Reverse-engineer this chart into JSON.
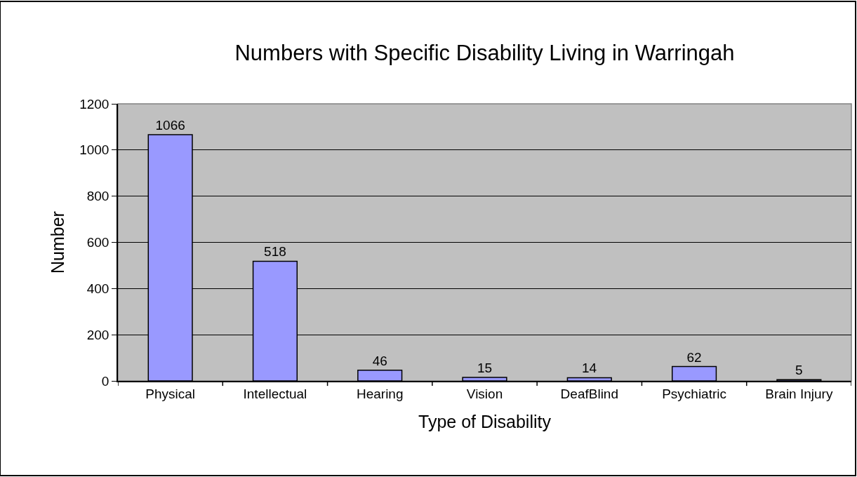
{
  "chart_data": {
    "type": "bar",
    "title": "Numbers with Specific Disability Living in Warringah",
    "xlabel": "Type of Disability",
    "ylabel": "Number",
    "categories": [
      "Physical",
      "Intellectual",
      "Hearing",
      "Vision",
      "DeafBlind",
      "Psychiatric",
      "Brain Injury"
    ],
    "values": [
      1066,
      518,
      46,
      15,
      14,
      62,
      5
    ],
    "color": "#9999ff",
    "ylim": [
      0,
      1200
    ],
    "yticks": [
      0,
      200,
      400,
      600,
      800,
      1000,
      1200
    ],
    "grid": "y",
    "data_labels": true
  }
}
